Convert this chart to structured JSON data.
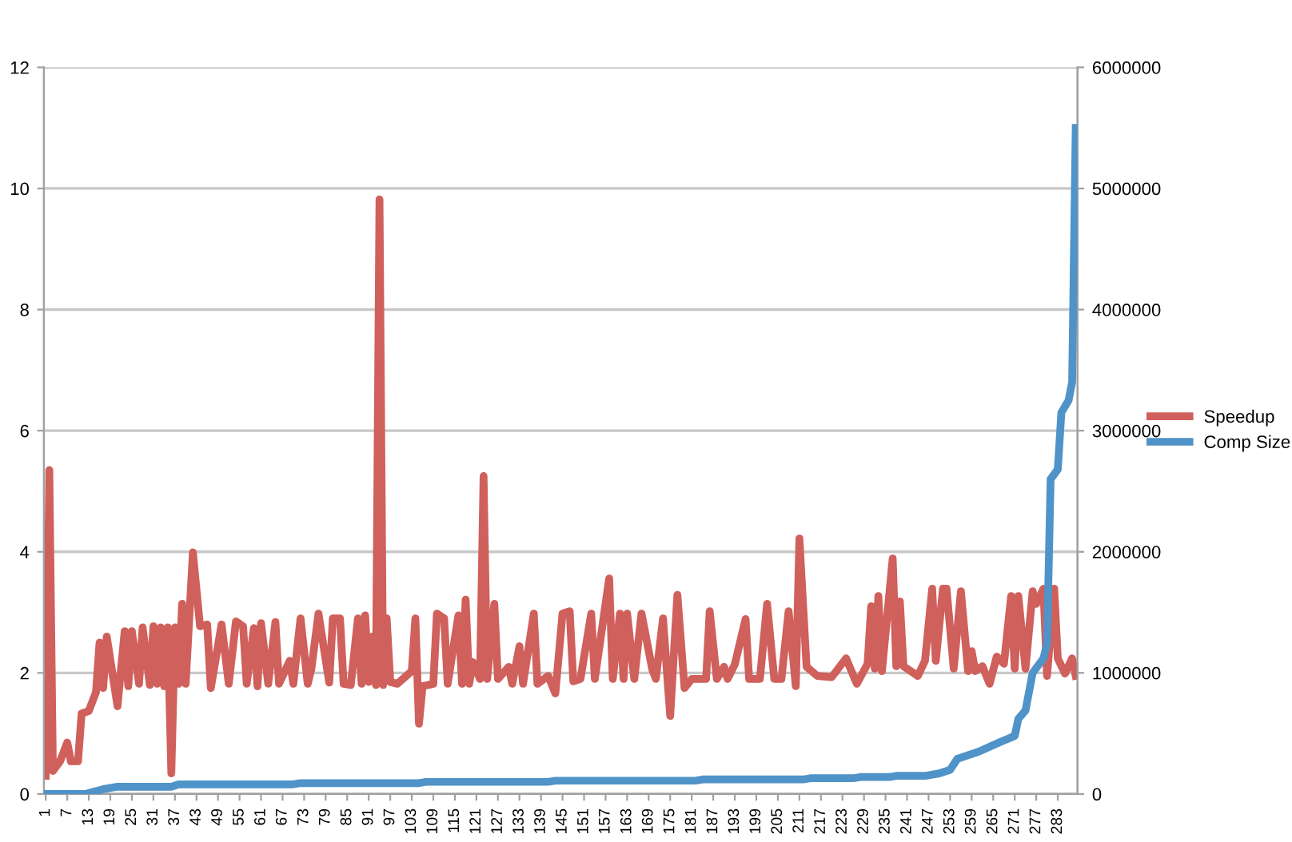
{
  "chart_data": {
    "type": "line",
    "xlim": [
      0.5,
      288.5
    ],
    "xticks": [
      1,
      7,
      13,
      19,
      25,
      31,
      37,
      43,
      49,
      55,
      61,
      67,
      73,
      79,
      85,
      91,
      97,
      103,
      109,
      115,
      121,
      127,
      133,
      139,
      145,
      151,
      157,
      163,
      169,
      175,
      181,
      187,
      193,
      199,
      205,
      211,
      217,
      223,
      229,
      235,
      241,
      247,
      253,
      259,
      265,
      271,
      277,
      283
    ],
    "ylim": [
      0,
      12
    ],
    "yticks": [
      0,
      2,
      4,
      6,
      8,
      10,
      12
    ],
    "y2lim": [
      0,
      6000000
    ],
    "y2ticks": [
      0,
      1000000,
      2000000,
      3000000,
      4000000,
      5000000,
      6000000
    ],
    "grid": "y",
    "legend": "right",
    "marker": "none",
    "line_style": "solid",
    "series": [
      {
        "name": "Speedup",
        "color": "#d0605c",
        "x": [
          1,
          2,
          3,
          5,
          7,
          8,
          10,
          11,
          13,
          15,
          16,
          17,
          18,
          21,
          23,
          24,
          25,
          27,
          28,
          30,
          31,
          32,
          33,
          34,
          35,
          36,
          37,
          38,
          39,
          40,
          42,
          44,
          46,
          47,
          50,
          52,
          54,
          56,
          57,
          59,
          60,
          61,
          63,
          65,
          66,
          69,
          70,
          72,
          74,
          75,
          77,
          80,
          81,
          83,
          84,
          86,
          88,
          89,
          90,
          91,
          92,
          93,
          94,
          95,
          96,
          97,
          99,
          103,
          104,
          105,
          106,
          109,
          110,
          112,
          113,
          116,
          117,
          118,
          119,
          120,
          122,
          123,
          124,
          126,
          127,
          130,
          131,
          133,
          134,
          137,
          138,
          141,
          143,
          145,
          147,
          148,
          150,
          153,
          154,
          158,
          159,
          161,
          162,
          163,
          165,
          167,
          170,
          171,
          173,
          175,
          177,
          179,
          181,
          185,
          186,
          188,
          190,
          191,
          193,
          196,
          197,
          200,
          202,
          204,
          206,
          208,
          210,
          211,
          213,
          216,
          220,
          224,
          227,
          230,
          231,
          232,
          233,
          234,
          237,
          238,
          239,
          240,
          242,
          244,
          246,
          248,
          249,
          251,
          252,
          254,
          256,
          258,
          259,
          260,
          262,
          264,
          266,
          268,
          270,
          271,
          272,
          274,
          276,
          277,
          279,
          280,
          282,
          283,
          285,
          287,
          288
        ],
        "values": [
          0.3,
          5.35,
          0.38,
          0.54,
          0.85,
          0.54,
          0.54,
          1.33,
          1.37,
          1.68,
          2.5,
          1.75,
          2.6,
          1.45,
          2.69,
          1.78,
          2.69,
          1.82,
          2.75,
          1.8,
          2.77,
          1.82,
          2.75,
          1.78,
          2.75,
          0.34,
          2.75,
          1.82,
          3.14,
          1.82,
          3.99,
          2.77,
          2.8,
          1.75,
          2.8,
          1.82,
          2.85,
          2.77,
          1.82,
          2.74,
          1.78,
          2.82,
          1.82,
          2.84,
          1.82,
          2.2,
          1.82,
          2.9,
          1.82,
          2.06,
          2.98,
          1.84,
          2.9,
          2.9,
          1.82,
          1.8,
          2.9,
          1.82,
          2.95,
          1.85,
          2.6,
          1.8,
          9.82,
          1.8,
          2.9,
          1.85,
          1.82,
          2.03,
          2.9,
          1.16,
          1.78,
          1.82,
          2.98,
          2.9,
          1.82,
          2.95,
          1.82,
          3.21,
          1.82,
          2.18,
          1.9,
          5.25,
          1.9,
          3.14,
          1.9,
          2.1,
          1.82,
          2.44,
          1.82,
          2.98,
          1.82,
          1.95,
          1.66,
          2.98,
          3.02,
          1.86,
          1.9,
          2.98,
          1.9,
          3.56,
          1.9,
          2.98,
          1.9,
          2.98,
          1.9,
          2.98,
          2.06,
          1.9,
          2.9,
          1.29,
          3.29,
          1.75,
          1.9,
          1.9,
          3.02,
          1.9,
          2.1,
          1.9,
          2.14,
          2.89,
          1.9,
          1.9,
          3.14,
          1.9,
          1.9,
          3.02,
          1.78,
          4.22,
          2.1,
          1.95,
          1.93,
          2.24,
          1.82,
          2.15,
          3.1,
          2.07,
          3.27,
          2.03,
          3.89,
          2.11,
          3.18,
          2.11,
          2.03,
          1.95,
          2.2,
          3.39,
          2.2,
          3.39,
          3.39,
          2.07,
          3.35,
          2.03,
          2.36,
          2.03,
          2.11,
          1.82,
          2.27,
          2.15,
          3.27,
          2.07,
          3.27,
          2.07,
          3.35,
          3.14,
          3.39,
          1.95,
          3.39,
          2.24,
          1.99,
          2.24,
          1.95
        ]
      },
      {
        "name": "Comp Size",
        "color": "#4f93c8",
        "axis": "y2",
        "x": [
          1,
          12,
          17,
          21,
          36,
          38,
          70,
          72,
          105,
          107,
          141,
          143,
          182,
          184,
          212,
          214,
          226,
          228,
          236,
          238,
          246,
          250,
          253,
          255,
          261,
          267,
          271,
          272,
          274,
          276,
          279,
          280,
          281,
          283,
          284,
          286,
          287,
          288
        ],
        "values": [
          0,
          0,
          40000,
          60000,
          60000,
          80000,
          80000,
          90000,
          90000,
          100000,
          100000,
          110000,
          110000,
          120000,
          120000,
          130000,
          130000,
          140000,
          140000,
          150000,
          150000,
          170000,
          200000,
          290000,
          350000,
          430000,
          480000,
          620000,
          690000,
          1000000,
          1120000,
          1240000,
          2600000,
          2680000,
          3150000,
          3250000,
          3400000,
          5500000
        ]
      }
    ]
  }
}
